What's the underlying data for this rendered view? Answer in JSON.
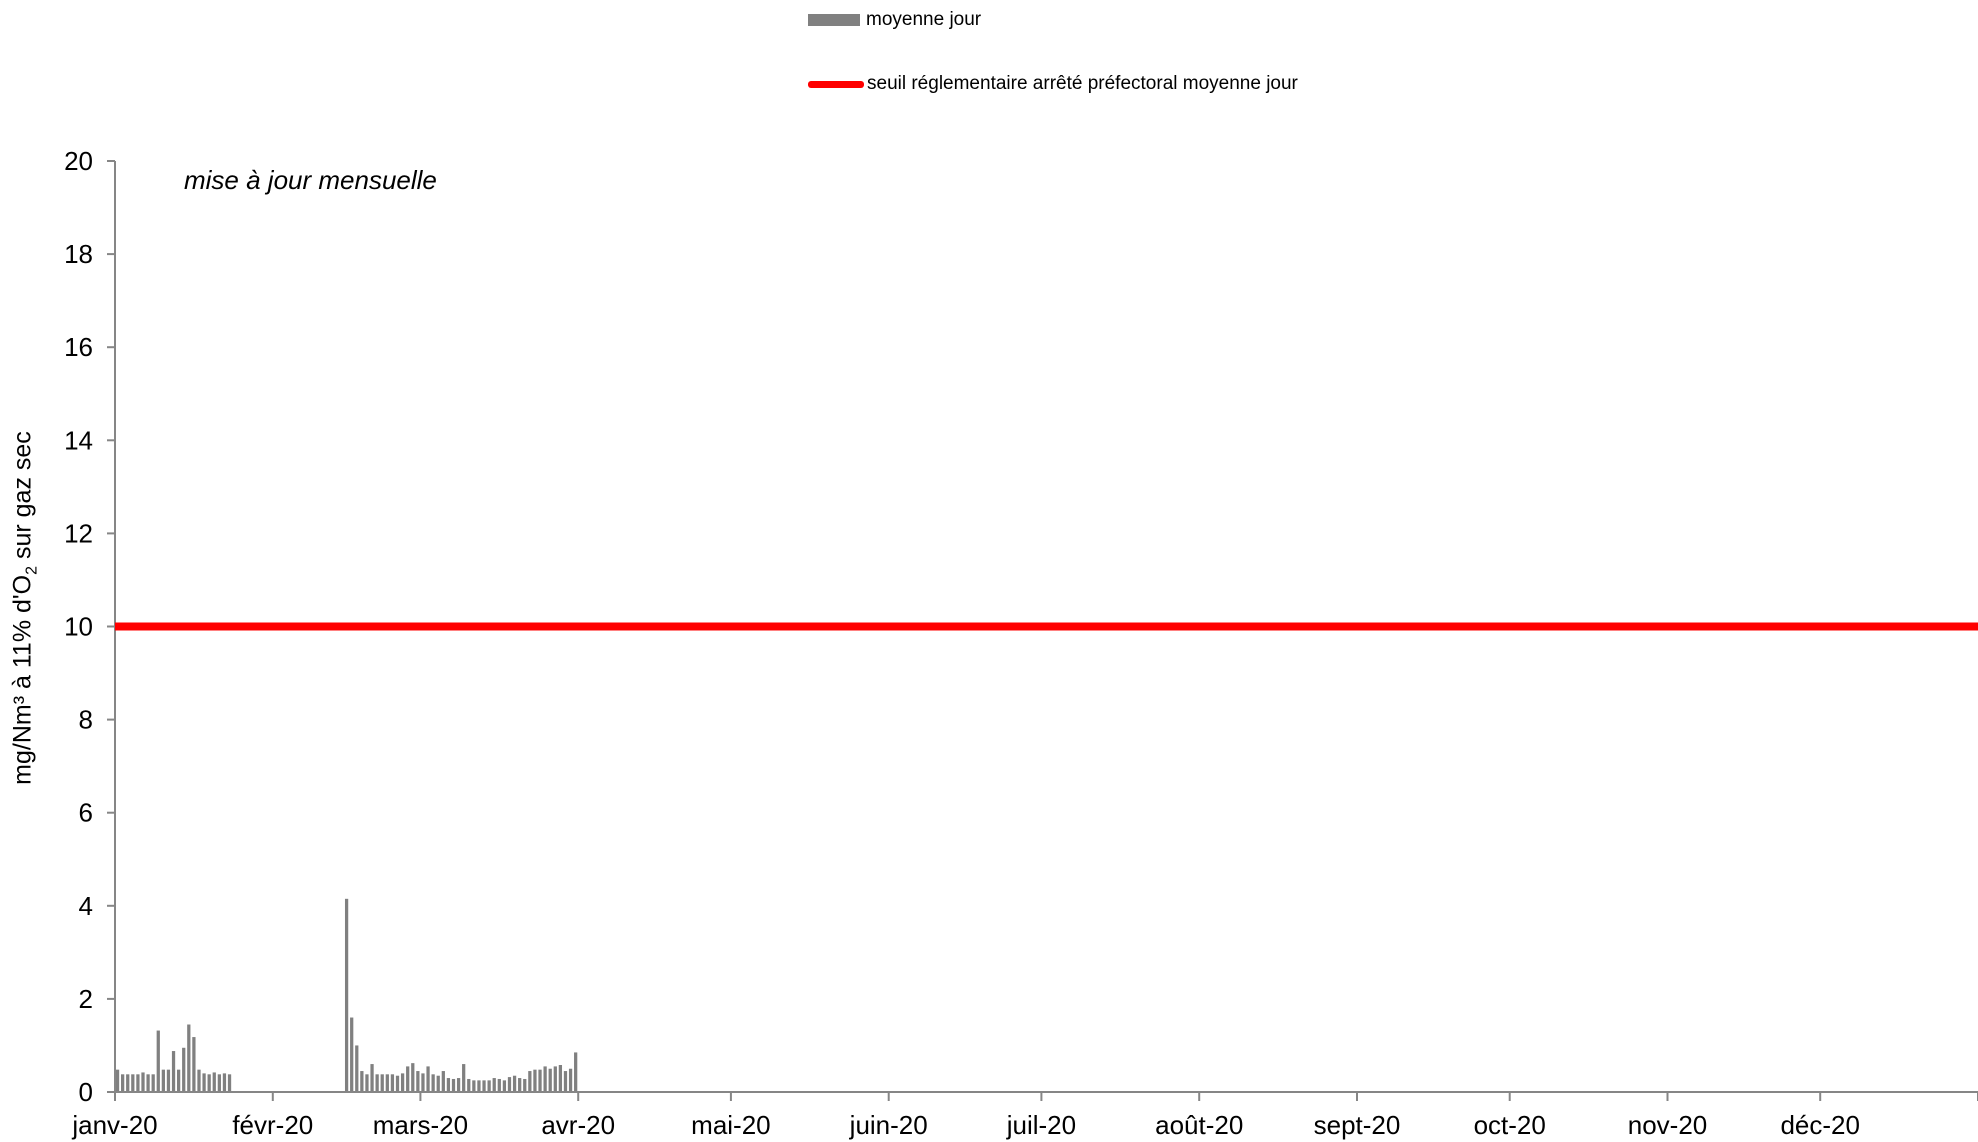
{
  "chart_data": {
    "type": "bar",
    "title": "",
    "xlabel": "",
    "ylabel_main": "mg/Nm³ à 11% d'O",
    "ylabel_subscript": "2",
    "ylabel_rest": " sur gaz sec",
    "annotation": "mise à jour mensuelle",
    "ylim": [
      0,
      20
    ],
    "yticks": [
      "0",
      "2",
      "4",
      "6",
      "8",
      "10",
      "12",
      "14",
      "16",
      "18",
      "20"
    ],
    "xlim_days": [
      0,
      366
    ],
    "month_ticks": [
      "janv-20",
      "févr-20",
      "mars-20",
      "avr-20",
      "mai-20",
      "juin-20",
      "juil-20",
      "août-20",
      "sept-20",
      "oct-20",
      "nov-20",
      "déc-20"
    ],
    "legend": {
      "bar_label": "moyenne jour",
      "line_label": "seuil réglementaire arrêté préfectoral moyenne jour"
    },
    "colors": {
      "bar": "#808080",
      "threshold": "#ff0000",
      "axis": "#868686"
    },
    "threshold": 10,
    "series": [
      {
        "name": "moyenne jour",
        "x": [
          "2020-01-01",
          "2020-01-02",
          "2020-01-03",
          "2020-01-04",
          "2020-01-05",
          "2020-01-06",
          "2020-01-07",
          "2020-01-08",
          "2020-01-09",
          "2020-01-10",
          "2020-01-11",
          "2020-01-12",
          "2020-01-13",
          "2020-01-14",
          "2020-01-15",
          "2020-01-16",
          "2020-01-17",
          "2020-01-18",
          "2020-01-19",
          "2020-01-20",
          "2020-01-21",
          "2020-01-22",
          "2020-01-23",
          "2020-02-15",
          "2020-02-16",
          "2020-02-17",
          "2020-02-18",
          "2020-02-19",
          "2020-02-20",
          "2020-02-21",
          "2020-02-22",
          "2020-02-23",
          "2020-02-24",
          "2020-02-25",
          "2020-02-26",
          "2020-02-27",
          "2020-02-28",
          "2020-02-29",
          "2020-03-01",
          "2020-03-02",
          "2020-03-03",
          "2020-03-04",
          "2020-03-05",
          "2020-03-06",
          "2020-03-07",
          "2020-03-08",
          "2020-03-09",
          "2020-03-10",
          "2020-03-11",
          "2020-03-12",
          "2020-03-13",
          "2020-03-14",
          "2020-03-15",
          "2020-03-16",
          "2020-03-17",
          "2020-03-18",
          "2020-03-19",
          "2020-03-20",
          "2020-03-21",
          "2020-03-22",
          "2020-03-23",
          "2020-03-24",
          "2020-03-25",
          "2020-03-26",
          "2020-03-27",
          "2020-03-28",
          "2020-03-29",
          "2020-03-30",
          "2020-03-31"
        ],
        "values": [
          0.48,
          0.38,
          0.38,
          0.38,
          0.38,
          0.42,
          0.38,
          0.38,
          1.32,
          0.48,
          0.48,
          0.88,
          0.48,
          0.95,
          1.45,
          1.18,
          0.48,
          0.4,
          0.38,
          0.42,
          0.38,
          0.4,
          0.38,
          4.15,
          1.6,
          1.0,
          0.45,
          0.38,
          0.6,
          0.38,
          0.38,
          0.38,
          0.38,
          0.35,
          0.4,
          0.55,
          0.62,
          0.45,
          0.4,
          0.55,
          0.38,
          0.35,
          0.45,
          0.3,
          0.28,
          0.3,
          0.6,
          0.28,
          0.25,
          0.25,
          0.25,
          0.25,
          0.3,
          0.28,
          0.25,
          0.32,
          0.35,
          0.3,
          0.28,
          0.45,
          0.48,
          0.48,
          0.55,
          0.5,
          0.55,
          0.58,
          0.45,
          0.5,
          0.85
        ]
      }
    ]
  }
}
